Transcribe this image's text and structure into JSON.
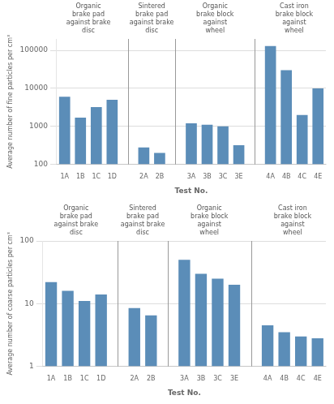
{
  "chart_data": [
    {
      "type": "bar",
      "categories": [
        "1A",
        "1B",
        "1C",
        "1D",
        null,
        "2A",
        "2B",
        null,
        "3A",
        "3B",
        "3C",
        "3E",
        null,
        "4A",
        "4B",
        "4C",
        "4E"
      ],
      "values": [
        6000,
        1700,
        3200,
        5000,
        null,
        280,
        200,
        null,
        1200,
        1100,
        1000,
        320,
        null,
        130000,
        30000,
        2000,
        10000
      ],
      "color": "#5b8db8",
      "log": "y",
      "ylim": [
        100,
        200000
      ],
      "yticks": [
        100,
        1000,
        10000,
        100000
      ],
      "grid": true,
      "xlabel": "Test No.",
      "ylabel": "Average number of fine particles per cm³",
      "annotations": [
        "Organic\nbrake pad\nagainst brake\ndisc",
        "Sintered\nbrake pad\nagainst brake\ndisc",
        "Organic\nbrake block\nagainst\nwheel",
        "Cast iron\nbrake block\nagainst\nwheel"
      ]
    },
    {
      "type": "bar",
      "categories": [
        "1A",
        "1B",
        "1C",
        "1D",
        null,
        "2A",
        "2B",
        null,
        "3A",
        "3B",
        "3C",
        "3E",
        null,
        "4A",
        "4B",
        "4C",
        "4E"
      ],
      "values": [
        22,
        16,
        11,
        14,
        null,
        8.5,
        6.5,
        null,
        50,
        30,
        25,
        20,
        null,
        4.5,
        3.5,
        3.0,
        2.8
      ],
      "color": "#5b8db8",
      "log": "y",
      "ylim": [
        1,
        100
      ],
      "yticks": [
        1,
        10,
        100
      ],
      "grid": true,
      "xlabel": "Test No.",
      "ylabel": "Average number of coarse particles per cm³",
      "annotations": [
        "Organic\nbrake pad\nagainst brake\ndisc",
        "Sintered\nbrake pad\nagainst brake\ndisc",
        "Organic\nbrake block\nagainst\nwheel",
        "Cast iron\nbrake block\nagainst\nwheel"
      ]
    }
  ]
}
